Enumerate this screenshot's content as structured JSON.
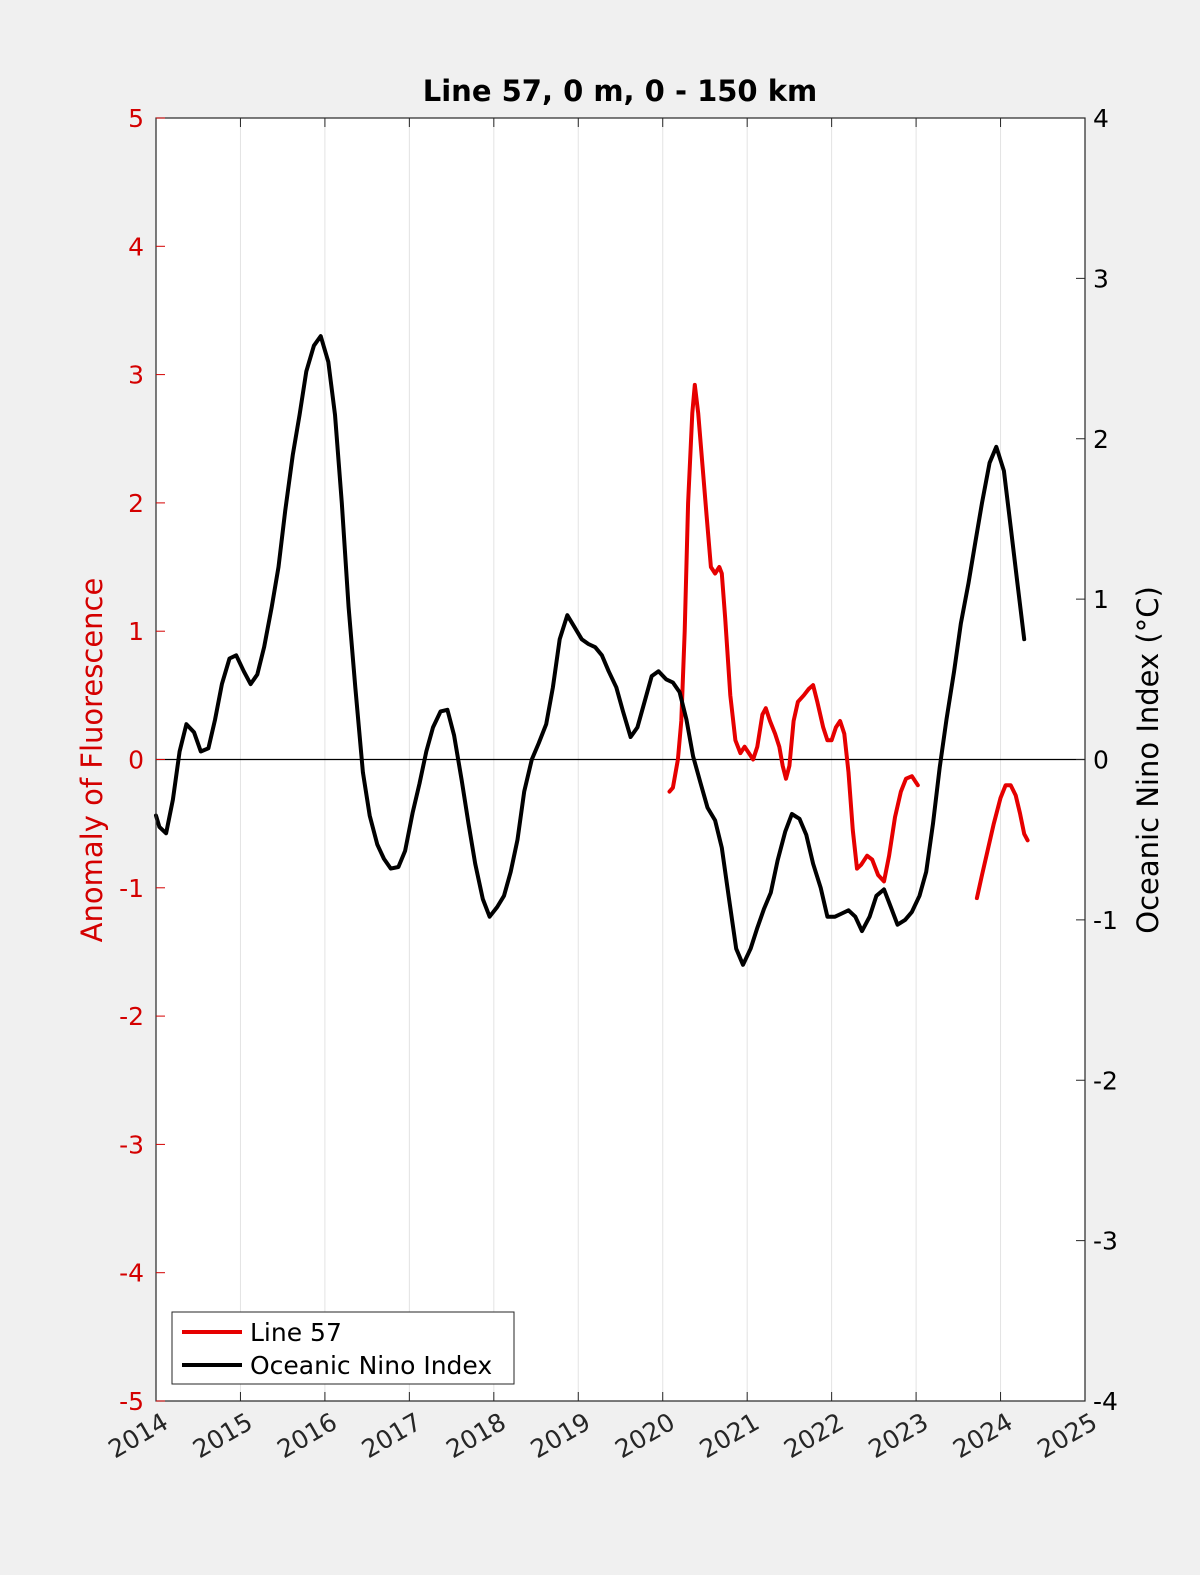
{
  "chart_data": {
    "type": "line",
    "title": "Line 57, 0 m, 0 - 150 km",
    "xlabel": "",
    "ylabel_left": "Anomaly of Fluorescence",
    "ylabel_right": "Oceanic Nino Index (°C)",
    "xlim": [
      2014,
      2025
    ],
    "ylim_left": [
      -5,
      5
    ],
    "ylim_right": [
      -4,
      4
    ],
    "x_ticks": [
      "2014",
      "2015",
      "2016",
      "2017",
      "2018",
      "2019",
      "2020",
      "2021",
      "2022",
      "2023",
      "2024",
      "2025"
    ],
    "y_left_ticks": [
      "5",
      "4",
      "3",
      "2",
      "1",
      "0",
      "-1",
      "-2",
      "-3",
      "-4",
      "-5"
    ],
    "y_right_ticks": [
      "4",
      "3",
      "2",
      "1",
      "0",
      "-1",
      "-2",
      "-3",
      "-4"
    ],
    "grid": "vertical",
    "legend_position": "bottom-left",
    "colors": {
      "line57": "#e60000",
      "oni": "#000000",
      "left_axis": "#d40000"
    },
    "series": [
      {
        "name": "Line 57",
        "axis": "left",
        "color": "#e60000",
        "segments": [
          [
            [
              2020.08,
              -0.25
            ],
            [
              2020.12,
              -0.22
            ],
            [
              2020.18,
              0.0
            ],
            [
              2020.22,
              0.3
            ],
            [
              2020.26,
              1.0
            ],
            [
              2020.3,
              2.0
            ],
            [
              2020.35,
              2.7
            ],
            [
              2020.38,
              2.92
            ],
            [
              2020.42,
              2.7
            ],
            [
              2020.47,
              2.3
            ],
            [
              2020.52,
              1.9
            ],
            [
              2020.57,
              1.5
            ],
            [
              2020.62,
              1.45
            ],
            [
              2020.67,
              1.5
            ],
            [
              2020.7,
              1.45
            ],
            [
              2020.74,
              1.1
            ],
            [
              2020.8,
              0.5
            ],
            [
              2020.86,
              0.15
            ],
            [
              2020.92,
              0.05
            ],
            [
              2020.97,
              0.1
            ],
            [
              2021.02,
              0.05
            ],
            [
              2021.07,
              0.0
            ],
            [
              2021.12,
              0.1
            ],
            [
              2021.18,
              0.35
            ],
            [
              2021.22,
              0.4
            ],
            [
              2021.27,
              0.3
            ],
            [
              2021.33,
              0.2
            ],
            [
              2021.38,
              0.1
            ],
            [
              2021.42,
              -0.05
            ],
            [
              2021.46,
              -0.15
            ],
            [
              2021.5,
              -0.05
            ],
            [
              2021.55,
              0.3
            ],
            [
              2021.6,
              0.45
            ],
            [
              2021.67,
              0.5
            ],
            [
              2021.73,
              0.55
            ],
            [
              2021.78,
              0.58
            ],
            [
              2021.83,
              0.45
            ],
            [
              2021.9,
              0.25
            ],
            [
              2021.95,
              0.15
            ],
            [
              2022.0,
              0.15
            ],
            [
              2022.05,
              0.25
            ],
            [
              2022.1,
              0.3
            ],
            [
              2022.15,
              0.2
            ],
            [
              2022.2,
              -0.1
            ],
            [
              2022.25,
              -0.55
            ],
            [
              2022.3,
              -0.85
            ],
            [
              2022.35,
              -0.82
            ],
            [
              2022.42,
              -0.75
            ],
            [
              2022.48,
              -0.78
            ],
            [
              2022.55,
              -0.9
            ],
            [
              2022.62,
              -0.95
            ],
            [
              2022.68,
              -0.75
            ],
            [
              2022.75,
              -0.45
            ],
            [
              2022.82,
              -0.25
            ],
            [
              2022.88,
              -0.15
            ],
            [
              2022.95,
              -0.13
            ],
            [
              2023.02,
              -0.2
            ]
          ],
          [
            [
              2023.72,
              -1.08
            ],
            [
              2023.78,
              -0.9
            ],
            [
              2023.85,
              -0.7
            ],
            [
              2023.92,
              -0.5
            ],
            [
              2024.0,
              -0.3
            ],
            [
              2024.06,
              -0.2
            ],
            [
              2024.12,
              -0.2
            ],
            [
              2024.18,
              -0.28
            ],
            [
              2024.23,
              -0.42
            ],
            [
              2024.28,
              -0.58
            ],
            [
              2024.32,
              -0.63
            ]
          ]
        ]
      },
      {
        "name": "Oceanic Nino Index",
        "axis": "right",
        "color": "#000000",
        "segments": [
          [
            [
              2014.0,
              -0.35
            ],
            [
              2014.04,
              -0.42
            ],
            [
              2014.12,
              -0.46
            ],
            [
              2014.2,
              -0.25
            ],
            [
              2014.28,
              0.05
            ],
            [
              2014.36,
              0.22
            ],
            [
              2014.45,
              0.17
            ],
            [
              2014.53,
              0.05
            ],
            [
              2014.62,
              0.07
            ],
            [
              2014.7,
              0.25
            ],
            [
              2014.78,
              0.47
            ],
            [
              2014.87,
              0.63
            ],
            [
              2014.95,
              0.65
            ],
            [
              2015.04,
              0.55
            ],
            [
              2015.12,
              0.47
            ],
            [
              2015.2,
              0.53
            ],
            [
              2015.28,
              0.7
            ],
            [
              2015.37,
              0.95
            ],
            [
              2015.45,
              1.2
            ],
            [
              2015.53,
              1.55
            ],
            [
              2015.62,
              1.9
            ],
            [
              2015.7,
              2.15
            ],
            [
              2015.78,
              2.42
            ],
            [
              2015.87,
              2.58
            ],
            [
              2015.95,
              2.64
            ],
            [
              2016.04,
              2.48
            ],
            [
              2016.12,
              2.15
            ],
            [
              2016.2,
              1.6
            ],
            [
              2016.28,
              0.95
            ],
            [
              2016.36,
              0.45
            ],
            [
              2016.45,
              -0.08
            ],
            [
              2016.53,
              -0.35
            ],
            [
              2016.62,
              -0.53
            ],
            [
              2016.7,
              -0.62
            ],
            [
              2016.78,
              -0.68
            ],
            [
              2016.87,
              -0.67
            ],
            [
              2016.95,
              -0.57
            ],
            [
              2017.04,
              -0.33
            ],
            [
              2017.12,
              -0.15
            ],
            [
              2017.2,
              0.05
            ],
            [
              2017.28,
              0.2
            ],
            [
              2017.37,
              0.3
            ],
            [
              2017.45,
              0.31
            ],
            [
              2017.53,
              0.15
            ],
            [
              2017.62,
              -0.13
            ],
            [
              2017.7,
              -0.4
            ],
            [
              2017.78,
              -0.65
            ],
            [
              2017.87,
              -0.87
            ],
            [
              2017.95,
              -0.98
            ],
            [
              2018.04,
              -0.92
            ],
            [
              2018.12,
              -0.85
            ],
            [
              2018.2,
              -0.7
            ],
            [
              2018.28,
              -0.5
            ],
            [
              2018.36,
              -0.2
            ],
            [
              2018.45,
              0.0
            ],
            [
              2018.53,
              0.1
            ],
            [
              2018.62,
              0.22
            ],
            [
              2018.7,
              0.45
            ],
            [
              2018.78,
              0.75
            ],
            [
              2018.87,
              0.9
            ],
            [
              2018.95,
              0.83
            ],
            [
              2019.04,
              0.75
            ],
            [
              2019.12,
              0.72
            ],
            [
              2019.2,
              0.7
            ],
            [
              2019.28,
              0.65
            ],
            [
              2019.36,
              0.55
            ],
            [
              2019.45,
              0.45
            ],
            [
              2019.53,
              0.3
            ],
            [
              2019.62,
              0.14
            ],
            [
              2019.7,
              0.2
            ],
            [
              2019.78,
              0.35
            ],
            [
              2019.87,
              0.52
            ],
            [
              2019.95,
              0.55
            ],
            [
              2020.04,
              0.5
            ],
            [
              2020.12,
              0.48
            ],
            [
              2020.2,
              0.42
            ],
            [
              2020.28,
              0.25
            ],
            [
              2020.36,
              0.02
            ],
            [
              2020.45,
              -0.15
            ],
            [
              2020.53,
              -0.3
            ],
            [
              2020.62,
              -0.38
            ],
            [
              2020.7,
              -0.55
            ],
            [
              2020.78,
              -0.85
            ],
            [
              2020.87,
              -1.18
            ],
            [
              2020.95,
              -1.28
            ],
            [
              2021.04,
              -1.18
            ],
            [
              2021.12,
              -1.05
            ],
            [
              2021.2,
              -0.93
            ],
            [
              2021.28,
              -0.83
            ],
            [
              2021.36,
              -0.63
            ],
            [
              2021.45,
              -0.45
            ],
            [
              2021.53,
              -0.34
            ],
            [
              2021.62,
              -0.37
            ],
            [
              2021.7,
              -0.47
            ],
            [
              2021.78,
              -0.65
            ],
            [
              2021.87,
              -0.8
            ],
            [
              2021.95,
              -0.98
            ],
            [
              2022.04,
              -0.98
            ],
            [
              2022.12,
              -0.96
            ],
            [
              2022.2,
              -0.94
            ],
            [
              2022.28,
              -0.98
            ],
            [
              2022.36,
              -1.07
            ],
            [
              2022.45,
              -0.98
            ],
            [
              2022.53,
              -0.85
            ],
            [
              2022.62,
              -0.81
            ],
            [
              2022.7,
              -0.92
            ],
            [
              2022.78,
              -1.03
            ],
            [
              2022.87,
              -1.0
            ],
            [
              2022.95,
              -0.95
            ],
            [
              2023.04,
              -0.85
            ],
            [
              2023.12,
              -0.7
            ],
            [
              2023.2,
              -0.4
            ],
            [
              2023.28,
              -0.05
            ],
            [
              2023.36,
              0.25
            ],
            [
              2023.45,
              0.55
            ],
            [
              2023.53,
              0.85
            ],
            [
              2023.62,
              1.1
            ],
            [
              2023.7,
              1.35
            ],
            [
              2023.78,
              1.6
            ],
            [
              2023.87,
              1.85
            ],
            [
              2023.95,
              1.95
            ],
            [
              2024.04,
              1.8
            ],
            [
              2024.12,
              1.45
            ],
            [
              2024.2,
              1.1
            ],
            [
              2024.28,
              0.75
            ]
          ]
        ]
      }
    ],
    "reference_lines": [
      {
        "axis": "left",
        "y": 0
      }
    ]
  }
}
